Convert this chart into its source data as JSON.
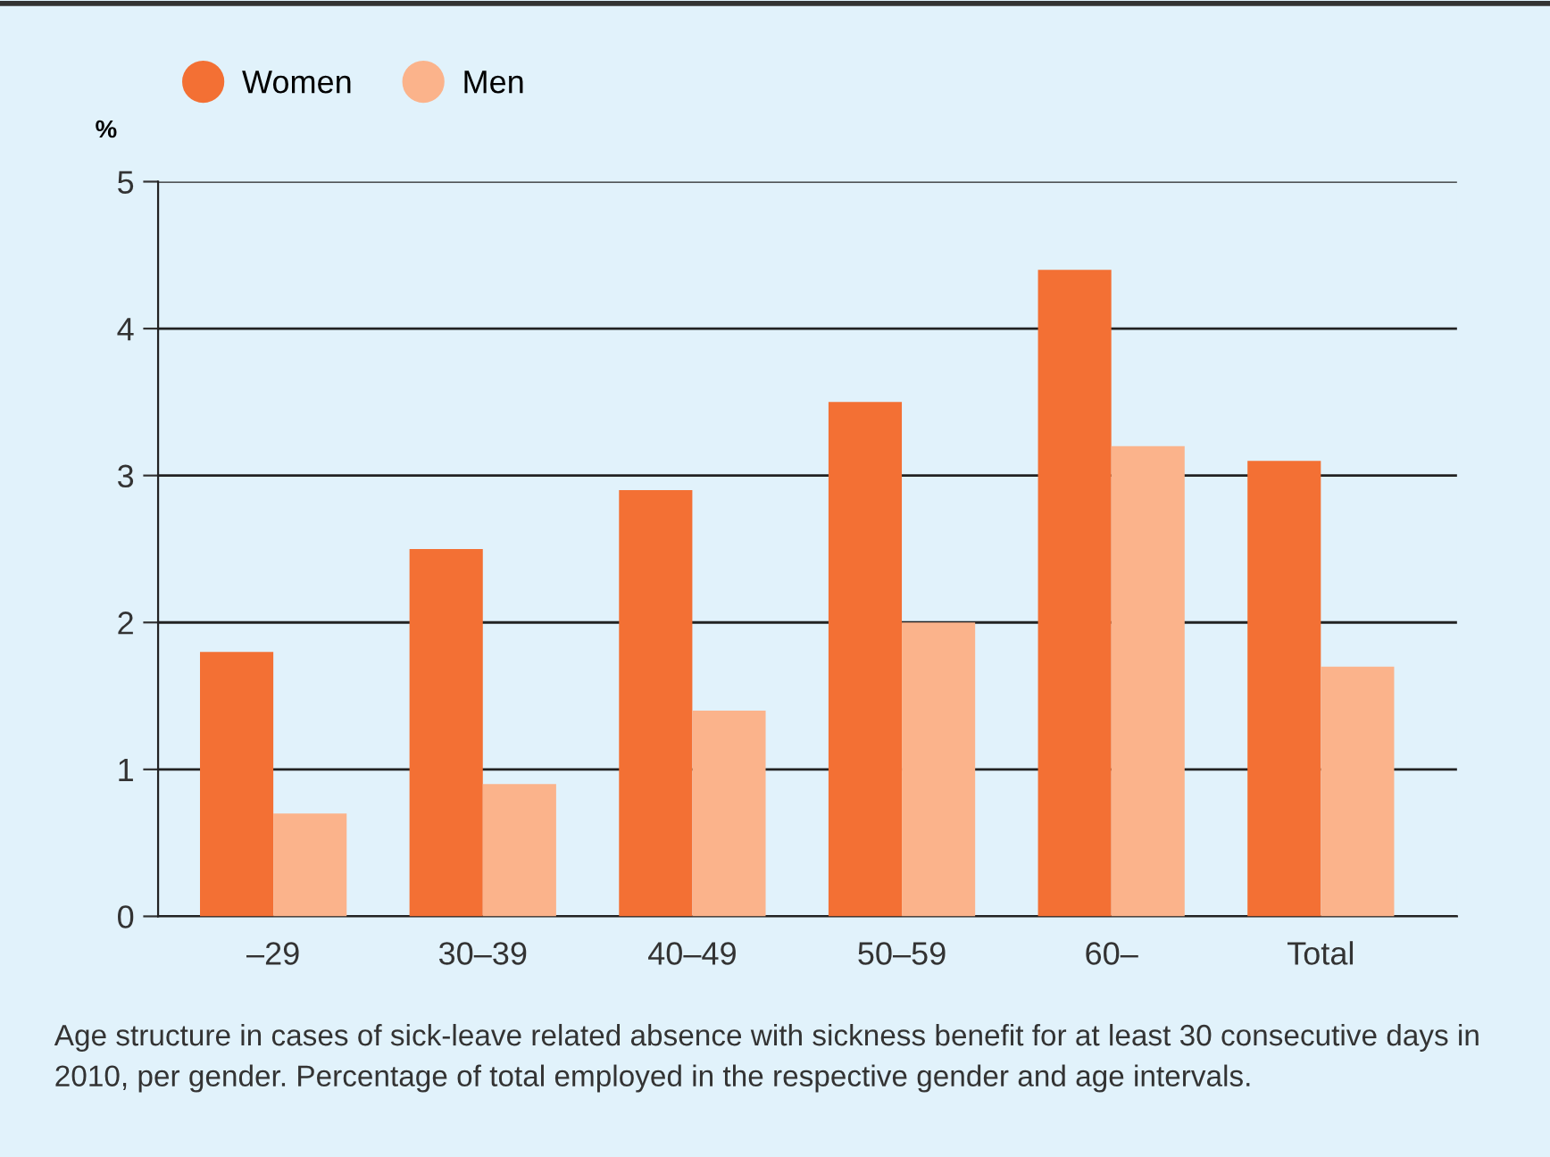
{
  "chart_data": {
    "type": "bar",
    "ylabel": "%",
    "categories": [
      "–29",
      "30–39",
      "40–49",
      "50–59",
      "60–",
      "Total"
    ],
    "series": [
      {
        "name": "Women",
        "color": "#f37034",
        "values": [
          1.8,
          2.5,
          2.9,
          3.5,
          4.4,
          3.1
        ]
      },
      {
        "name": "Men",
        "color": "#fbb38b",
        "values": [
          0.7,
          0.9,
          1.4,
          2.0,
          3.2,
          1.7
        ]
      }
    ],
    "ylim": [
      0,
      5
    ],
    "yticks": [
      0,
      1,
      2,
      3,
      4,
      5
    ],
    "grid": "y",
    "legend": "top left",
    "annotations": [
      "Age structure in cases of sick-leave related absence with sickness benefit for at least 30 consecutive days in 2010, per gender. Percentage of total employed in the respective gender and age intervals."
    ]
  }
}
